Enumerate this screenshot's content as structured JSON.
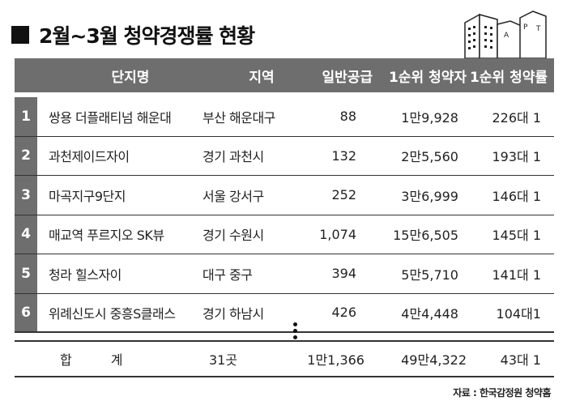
{
  "title": "2월~3월 청약경쟁률 현황",
  "apt_letters": [
    "A",
    "P",
    "T"
  ],
  "headers": {
    "name": "단지명",
    "region": "지역",
    "general": "일반공급",
    "first_applicants": "1순위 청약자",
    "first_rate": "1순위 청약률"
  },
  "rows": [
    {
      "num": "1",
      "name": "쌍용 더플래티넘 해운대",
      "region": "부산 해운대구",
      "general": "88",
      "first": "1만9,928",
      "rate": "226대 1"
    },
    {
      "num": "2",
      "name": "과천제이드자이",
      "region": "경기 과천시",
      "general": "132",
      "first": "2만5,560",
      "rate": "193대 1"
    },
    {
      "num": "3",
      "name": "마곡지구9단지",
      "region": "서울 강서구",
      "general": "252",
      "first": "3만6,999",
      "rate": "146대 1"
    },
    {
      "num": "4",
      "name": "매교역 푸르지오 SK뷰",
      "region": "경기 수원시",
      "general": "1,074",
      "first": "15만6,505",
      "rate": "145대 1"
    },
    {
      "num": "5",
      "name": "청라 힐스자이",
      "region": "대구 중구",
      "general": "394",
      "first": "5만5,710",
      "rate": "141대 1"
    },
    {
      "num": "6",
      "name": "위례신도시 중흥S클래스",
      "region": "경기 하남시",
      "general": "426",
      "first": "4만4,448",
      "rate": "104대1"
    }
  ],
  "total": {
    "label": "합계",
    "count": "31곳",
    "general": "1만1,366",
    "first": "49만4,322",
    "rate": "43대 1"
  },
  "source": "자료 : 한국감정원 청약홈"
}
